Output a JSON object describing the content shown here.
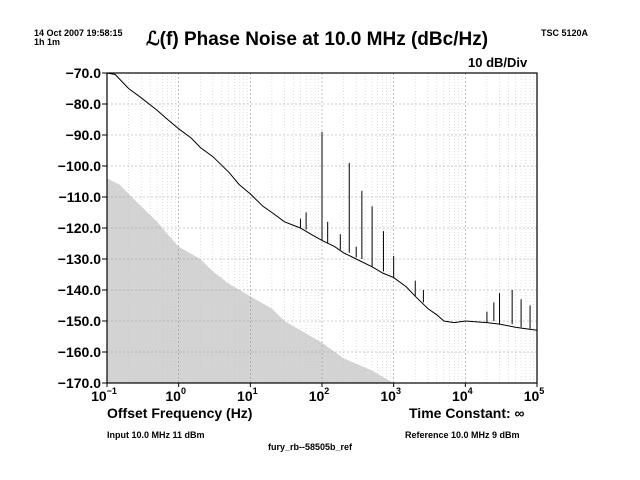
{
  "header": {
    "timestamp": "14 Oct 2007 19:58:15",
    "duration": "1h 1m",
    "instrument": "TSC 5120A",
    "title": "ℒ(f) Phase Noise at 10.0 MHz (dBc/Hz)",
    "scale": "10 dB/Div"
  },
  "footer": {
    "xlabel": "Offset Frequency (Hz)",
    "time_constant": "Time Constant: ∞",
    "input": "Input 10.0 MHz 11 dBm",
    "reference": "Reference 10.0 MHz 9 dBm",
    "filename": "fury_rb--58505b_ref"
  },
  "chart_data": {
    "type": "line",
    "title": "ℒ(f) Phase Noise at 10.0 MHz (dBc/Hz)",
    "xlabel": "Offset Frequency (Hz)",
    "ylabel": "",
    "xscale": "log",
    "xlim": [
      0.1,
      100000
    ],
    "ylim": [
      -170,
      -70
    ],
    "grid": true,
    "y_ticks": [
      -70,
      -80,
      -90,
      -100,
      -110,
      -120,
      -130,
      -140,
      -150,
      -160,
      -170
    ],
    "y_tick_labels": [
      "−70.0",
      "−80.0",
      "−90.0",
      "−100.0",
      "−110.0",
      "−120.0",
      "−130.0",
      "−140.0",
      "−150.0",
      "−160.0",
      "−170.0"
    ],
    "x_ticks": [
      {
        "value": 0.1,
        "base": "10",
        "exp": "−1"
      },
      {
        "value": 1,
        "base": "10",
        "exp": "0"
      },
      {
        "value": 10,
        "base": "10",
        "exp": "1"
      },
      {
        "value": 100,
        "base": "10",
        "exp": "2"
      },
      {
        "value": 1000,
        "base": "10",
        "exp": "3"
      },
      {
        "value": 10000,
        "base": "10",
        "exp": "4"
      },
      {
        "value": 100000,
        "base": "10",
        "exp": "5"
      }
    ],
    "series": [
      {
        "role": "measured phase noise",
        "color": "#000000",
        "x": [
          0.1,
          0.13,
          0.2,
          0.3,
          0.5,
          0.7,
          1,
          1.5,
          2,
          3,
          5,
          7,
          10,
          15,
          20,
          30,
          50,
          70,
          100,
          150,
          200,
          300,
          500,
          700,
          1000,
          1500,
          2000,
          3000,
          4000,
          5000,
          7000,
          10000,
          20000,
          30000,
          50000,
          70000,
          100000
        ],
        "y": [
          -70,
          -70.5,
          -75,
          -78,
          -82,
          -85,
          -88,
          -91,
          -94,
          -97,
          -102,
          -106,
          -109,
          -113,
          -115,
          -118,
          -120,
          -122,
          -124,
          -126,
          -128,
          -130,
          -132.5,
          -134.5,
          -136,
          -139,
          -142,
          -146,
          -148,
          -150,
          -150.5,
          -150,
          -150.5,
          -151,
          -152,
          -152.5,
          -153
        ]
      },
      {
        "role": "spurs",
        "color": "#000000",
        "spurs": [
          {
            "x": 50,
            "top": -117,
            "base": -120
          },
          {
            "x": 60,
            "top": -115,
            "base": -120.5
          },
          {
            "x": 100,
            "top": -89,
            "base": -124
          },
          {
            "x": 120,
            "top": -118,
            "base": -125
          },
          {
            "x": 180,
            "top": -122,
            "base": -127
          },
          {
            "x": 240,
            "top": -99,
            "base": -128
          },
          {
            "x": 300,
            "top": -126,
            "base": -129.5
          },
          {
            "x": 360,
            "top": -108,
            "base": -130
          },
          {
            "x": 500,
            "top": -113,
            "base": -132.5
          },
          {
            "x": 720,
            "top": -121,
            "base": -134
          },
          {
            "x": 1000,
            "top": -129,
            "base": -136
          },
          {
            "x": 2000,
            "top": -137,
            "base": -142
          },
          {
            "x": 2600,
            "top": -140,
            "base": -144
          },
          {
            "x": 20000,
            "top": -147,
            "base": -150.5
          },
          {
            "x": 25000,
            "top": -144,
            "base": -150
          },
          {
            "x": 30000,
            "top": -141,
            "base": -151
          },
          {
            "x": 45000,
            "top": -140,
            "base": -151
          },
          {
            "x": 60000,
            "top": -143,
            "base": -152
          },
          {
            "x": 80000,
            "top": -145,
            "base": -152.5
          }
        ]
      },
      {
        "role": "instrument noise floor",
        "color": "#d3d3d3",
        "x": [
          0.1,
          0.15,
          0.2,
          0.3,
          0.5,
          0.7,
          1,
          2,
          3,
          5,
          10,
          20,
          30,
          50,
          100,
          200,
          500,
          1000
        ],
        "y": [
          -104,
          -106,
          -109,
          -113,
          -118,
          -122,
          -126,
          -130,
          -134,
          -138,
          -142,
          -146,
          -150,
          -153,
          -157,
          -162,
          -166,
          -170
        ]
      }
    ]
  }
}
